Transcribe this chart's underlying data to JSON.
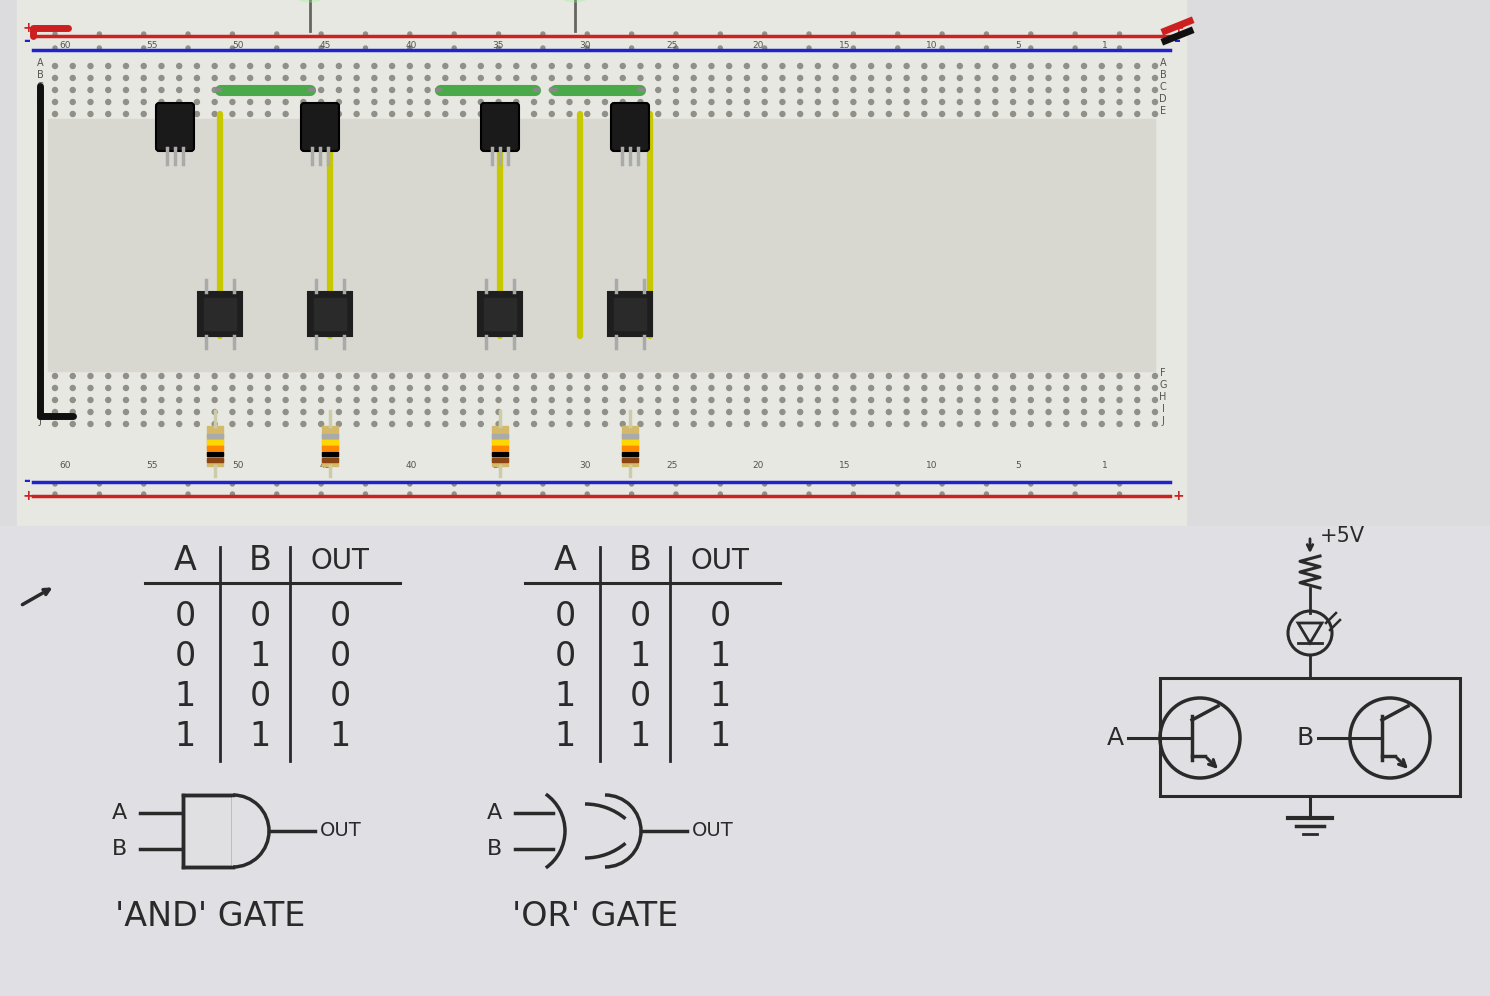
{
  "bg_color": "#c8c8cc",
  "paper_color": "#dcdcde",
  "bb_color": "#e8e8e2",
  "bb_frame_color": "#d0d0c8",
  "tc": "#2a2a2a",
  "red_wire": "#cc2020",
  "black_wire": "#101010",
  "green_wire": "#1a8a1a",
  "yellow_wire": "#c8c800",
  "green_led": "#22ee22",
  "rail_red": "#cc2222",
  "rail_blue": "#2222cc",
  "and_rows": [
    [
      "0",
      "0",
      "0"
    ],
    [
      "0",
      "1",
      "0"
    ],
    [
      "1",
      "0",
      "0"
    ],
    [
      "1",
      "1",
      "1"
    ]
  ],
  "or_rows": [
    [
      "0",
      "0",
      "0"
    ],
    [
      "0",
      "1",
      "1"
    ],
    [
      "1",
      "0",
      "1"
    ],
    [
      "1",
      "1",
      "1"
    ]
  ],
  "label_and": "'AND' GATE",
  "label_or": "'OR' GATE"
}
